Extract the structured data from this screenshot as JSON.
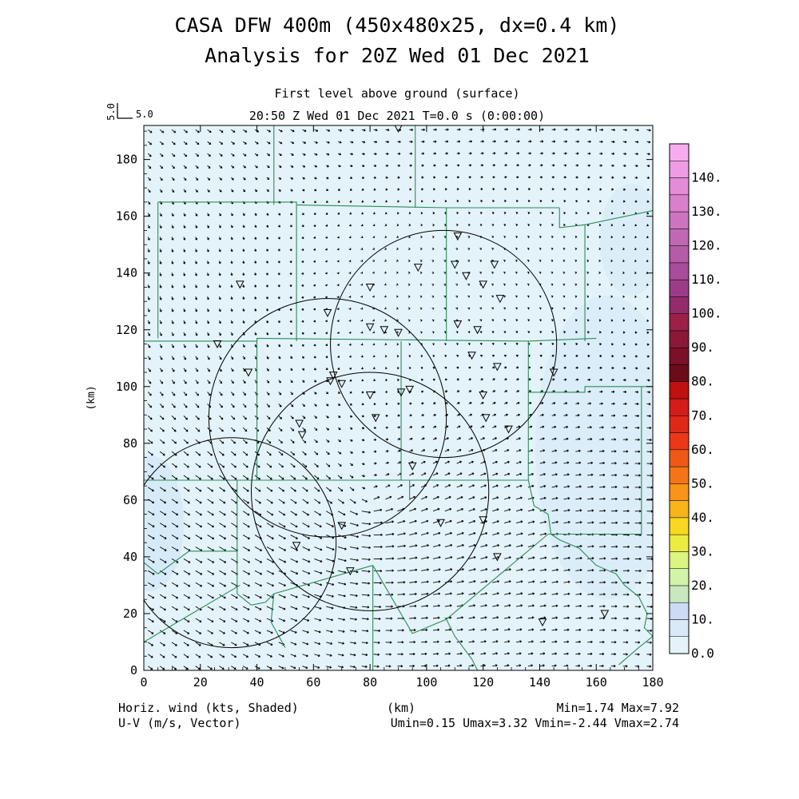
{
  "title": {
    "line1": "CASA DFW 400m (450x480x25, dx=0.4 km)",
    "line2": "Analysis for 20Z Wed 01 Dec 2021"
  },
  "subtitle": {
    "line1": "First level above ground (surface)",
    "line2": "20:50 Z Wed 01 Dec 2021    T=0.0 s (0:00:00)"
  },
  "reference_vector": {
    "label_x": "5.0",
    "label_y": "5.0"
  },
  "footer": {
    "left1": "Horiz. wind (kts, Shaded)",
    "left2": "U-V (m/s, Vector)",
    "center": "(km)",
    "right1": "Min=1.74 Max=7.92",
    "right2": "Umin=0.15 Umax=3.32 Vmin=-2.44 Vmax=2.74"
  },
  "colors": {
    "field": "#e3f3f9",
    "field_light": "#d0e6f7",
    "county_lines": "#2e8b57",
    "radar_rings": "#000000"
  },
  "chart_data": {
    "type": "heatmap",
    "xlabel": "",
    "ylabel": "(km)",
    "xlim": [
      0,
      180
    ],
    "ylim": [
      0,
      192
    ],
    "x_ticks": [
      0,
      20,
      40,
      60,
      80,
      100,
      120,
      140,
      160,
      180
    ],
    "y_ticks": [
      0,
      20,
      40,
      60,
      80,
      100,
      120,
      140,
      160,
      180
    ],
    "colorbar": {
      "levels": [
        0,
        5,
        10,
        15,
        20,
        25,
        30,
        35,
        40,
        45,
        50,
        55,
        60,
        65,
        70,
        75,
        80,
        85,
        90,
        95,
        100,
        105,
        110,
        115,
        120,
        125,
        130,
        135,
        140,
        145
      ],
      "colors": [
        "#e3f3f9",
        "#d8eaf8",
        "#ccdcf4",
        "#c8e8c0",
        "#d2f4a8",
        "#dcf480",
        "#ecec40",
        "#f8d820",
        "#f8b418",
        "#f89418",
        "#f47418",
        "#f05818",
        "#ec3818",
        "#e02818",
        "#d41c18",
        "#c01010",
        "#6c0c18",
        "#7c1028",
        "#8c1838",
        "#9c2048",
        "#942c6c",
        "#9c3c88",
        "#a84c9c",
        "#b45ca8",
        "#c068b4",
        "#cc74c0",
        "#d880cc",
        "#e48cd8",
        "#f09ce4",
        "#f8acf0"
      ],
      "labels": [
        "0.0",
        "10.",
        "20.",
        "30.",
        "40.",
        "50.",
        "60.",
        "70.",
        "80.",
        "90.",
        "100.",
        "110.",
        "120.",
        "130.",
        "140."
      ]
    },
    "radar_rings": [
      {
        "cx": 31,
        "cy": 45,
        "r": 37
      },
      {
        "cx": 80,
        "cy": 63,
        "r": 42
      },
      {
        "cx": 106,
        "cy": 115,
        "r": 40
      },
      {
        "cx": 65,
        "cy": 89,
        "r": 42
      }
    ],
    "stations": [
      [
        90,
        191
      ],
      [
        111,
        153
      ],
      [
        110,
        143
      ],
      [
        124,
        143
      ],
      [
        97,
        142
      ],
      [
        114,
        139
      ],
      [
        120,
        136
      ],
      [
        34,
        136
      ],
      [
        80,
        135
      ],
      [
        126,
        131
      ],
      [
        65,
        126
      ],
      [
        80,
        121
      ],
      [
        85,
        120
      ],
      [
        90,
        119
      ],
      [
        111,
        122
      ],
      [
        118,
        120
      ],
      [
        26,
        115
      ],
      [
        116,
        111
      ],
      [
        145,
        105
      ],
      [
        125,
        107
      ],
      [
        37,
        105
      ],
      [
        67,
        104
      ],
      [
        66,
        102
      ],
      [
        70,
        101
      ],
      [
        91,
        98
      ],
      [
        94,
        99
      ],
      [
        80,
        97
      ],
      [
        120,
        97
      ],
      [
        82,
        89
      ],
      [
        121,
        89
      ],
      [
        55,
        87
      ],
      [
        56,
        83
      ],
      [
        129,
        85
      ],
      [
        95,
        72
      ],
      [
        70,
        51
      ],
      [
        105,
        52
      ],
      [
        120,
        53
      ],
      [
        54,
        44
      ],
      [
        125,
        40
      ],
      [
        73,
        35
      ],
      [
        141,
        17
      ],
      [
        163,
        20
      ]
    ],
    "county_lines": [
      [
        [
          0,
          116
        ],
        [
          40,
          116
        ],
        [
          40,
          117
        ],
        [
          136,
          116
        ],
        [
          160,
          117
        ]
      ],
      [
        [
          0,
          68
        ],
        [
          0,
          67
        ],
        [
          34,
          67
        ],
        [
          40,
          67
        ],
        [
          136,
          67
        ]
      ],
      [
        [
          40,
          117
        ],
        [
          40,
          67
        ]
      ],
      [
        [
          5,
          165
        ],
        [
          54,
          165
        ],
        [
          54,
          164
        ],
        [
          107,
          163
        ],
        [
          147,
          163
        ]
      ],
      [
        [
          5,
          165
        ],
        [
          5,
          117
        ]
      ],
      [
        [
          54,
          164
        ],
        [
          54,
          116
        ]
      ],
      [
        [
          91,
          116
        ],
        [
          91,
          67
        ]
      ],
      [
        [
          107,
          163
        ],
        [
          107,
          116
        ]
      ],
      [
        [
          136,
          116
        ],
        [
          136,
          67
        ]
      ],
      [
        [
          147,
          163
        ],
        [
          147,
          156
        ],
        [
          156,
          157
        ],
        [
          180,
          162
        ]
      ],
      [
        [
          46,
          192
        ],
        [
          46,
          164
        ]
      ],
      [
        [
          96,
          192
        ],
        [
          96,
          163
        ]
      ],
      [
        [
          156,
          157
        ],
        [
          156,
          116
        ]
      ],
      [
        [
          136,
          98
        ],
        [
          156,
          98
        ],
        [
          156,
          100
        ],
        [
          180,
          100
        ]
      ],
      [
        [
          176,
          100
        ],
        [
          176,
          48
        ],
        [
          143,
          48
        ]
      ],
      [
        [
          136,
          67
        ],
        [
          138,
          58
        ],
        [
          143,
          55
        ],
        [
          144,
          48
        ]
      ],
      [
        [
          144,
          48
        ],
        [
          147,
          46
        ],
        [
          154,
          43
        ],
        [
          160,
          37
        ],
        [
          167,
          34
        ],
        [
          170,
          30
        ],
        [
          175,
          26
        ],
        [
          178,
          20
        ],
        [
          177,
          15
        ],
        [
          180,
          12
        ]
      ],
      [
        [
          180,
          12
        ],
        [
          175,
          8
        ],
        [
          168,
          2
        ]
      ],
      [
        [
          0,
          38
        ],
        [
          5,
          34
        ],
        [
          16,
          42
        ],
        [
          33,
          42
        ]
      ],
      [
        [
          33,
          67
        ],
        [
          33,
          27
        ],
        [
          38,
          23
        ],
        [
          43,
          24
        ],
        [
          46,
          27
        ],
        [
          81,
          37
        ]
      ],
      [
        [
          0,
          10
        ],
        [
          34,
          30
        ]
      ],
      [
        [
          46,
          27
        ],
        [
          45,
          17
        ],
        [
          50,
          8
        ]
      ],
      [
        [
          81,
          37
        ],
        [
          81,
          0
        ]
      ],
      [
        [
          81,
          37
        ],
        [
          95,
          13
        ],
        [
          107,
          18
        ],
        [
          110,
          12
        ],
        [
          116,
          4
        ],
        [
          118,
          0
        ]
      ],
      [
        [
          107,
          18
        ],
        [
          143,
          48
        ]
      ],
      [
        [
          94,
          67
        ],
        [
          94,
          60
        ]
      ]
    ],
    "wind_field": {
      "units": "m/s",
      "u_range": [
        0.15,
        3.32
      ],
      "v_range": [
        -2.44,
        2.74
      ],
      "speed_range_kts": [
        1.74,
        7.92
      ],
      "reference_vector_ms": 5.0,
      "circulation_center": [
        78,
        60
      ]
    }
  }
}
